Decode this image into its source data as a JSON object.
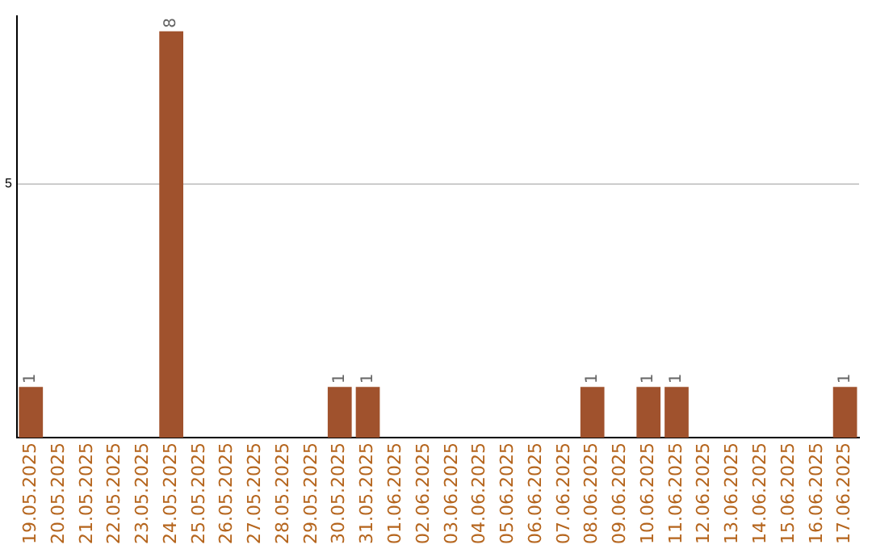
{
  "chart_data": {
    "type": "bar",
    "categories": [
      "19.05.2025",
      "20.05.2025",
      "21.05.2025",
      "22.05.2025",
      "23.05.2025",
      "24.05.2025",
      "25.05.2025",
      "26.05.2025",
      "27.05.2025",
      "28.05.2025",
      "29.05.2025",
      "30.05.2025",
      "31.05.2025",
      "01.06.2025",
      "02.06.2025",
      "03.06.2025",
      "04.06.2025",
      "05.06.2025",
      "06.06.2025",
      "07.06.2025",
      "08.06.2025",
      "09.06.2025",
      "10.06.2025",
      "11.06.2025",
      "12.06.2025",
      "13.06.2025",
      "14.06.2025",
      "15.06.2025",
      "16.06.2025",
      "17.06.2025"
    ],
    "values": [
      1,
      0,
      0,
      0,
      0,
      8,
      0,
      0,
      0,
      0,
      0,
      1,
      1,
      0,
      0,
      0,
      0,
      0,
      0,
      0,
      1,
      0,
      1,
      1,
      0,
      0,
      0,
      0,
      0,
      1
    ],
    "value_labels": [
      "1",
      null,
      null,
      null,
      null,
      "8",
      null,
      null,
      null,
      null,
      null,
      "1",
      "1",
      null,
      null,
      null,
      null,
      null,
      null,
      null,
      "1",
      null,
      "1",
      "1",
      null,
      null,
      null,
      null,
      null,
      "1"
    ],
    "color": "#a0522d",
    "ylim": [
      0,
      8.3
    ],
    "yticks": [
      5
    ],
    "grid": "y",
    "legend": false
  }
}
